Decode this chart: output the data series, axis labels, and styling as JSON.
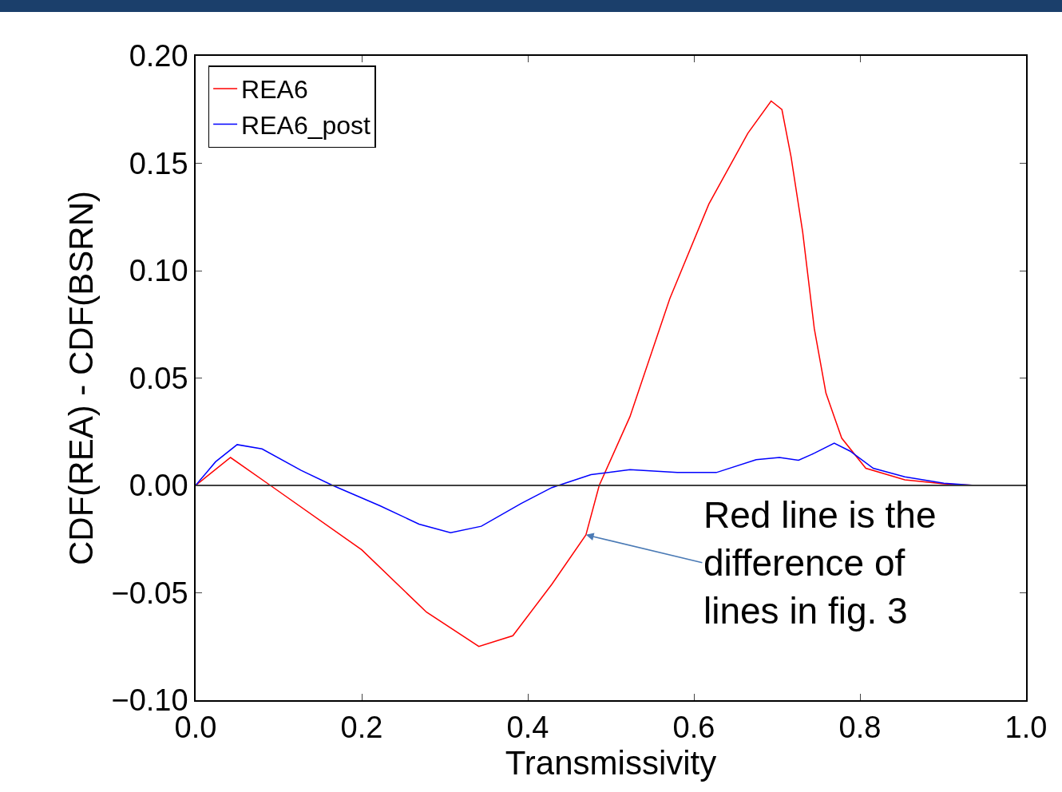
{
  "chart_data": {
    "type": "line",
    "xlabel": "Transmissivity",
    "ylabel": "CDF(REA) - CDF(BSRN)",
    "xlim": [
      0,
      1.0
    ],
    "xticks": [
      {
        "value": 0,
        "label": "0.0"
      },
      {
        "value": 0.2,
        "label": "0.2"
      },
      {
        "value": 0.4,
        "label": "0.4"
      },
      {
        "value": 0.6,
        "label": "0.6"
      },
      {
        "value": 0.8,
        "label": "0.8"
      },
      {
        "value": 1.0,
        "label": "1.0"
      }
    ],
    "ylim": [
      -0.1,
      0.2
    ],
    "yticks": [
      {
        "value": -0.1,
        "label": "−0.10"
      },
      {
        "value": -0.05,
        "label": "−0.05"
      },
      {
        "value": 0,
        "label": "0.00"
      },
      {
        "value": 0.05,
        "label": "0.05"
      },
      {
        "value": 0.1,
        "label": "0.10"
      },
      {
        "value": 0.15,
        "label": "0.15"
      },
      {
        "value": 0.2,
        "label": "0.20"
      }
    ],
    "grid": false,
    "legend": "top left",
    "line_style": "solid",
    "marker": "none",
    "series": [
      {
        "name": "REA6",
        "color": "#ff0000",
        "x": [
          0,
          0.042,
          0.09,
          0.2,
          0.278,
          0.341,
          0.382,
          0.429,
          0.47,
          0.486,
          0.523,
          0.571,
          0.618,
          0.665,
          0.693,
          0.706,
          0.717,
          0.731,
          0.745,
          0.759,
          0.778,
          0.807,
          0.854,
          0.901,
          0.939,
          0.995
        ],
        "values": [
          0,
          0.013,
          0,
          -0.03,
          -0.059,
          -0.075,
          -0.07,
          -0.046,
          -0.023,
          0,
          0.032,
          0.087,
          0.131,
          0.164,
          0.179,
          0.175,
          0.153,
          0.118,
          0.073,
          0.043,
          0.022,
          0.008,
          0.0026,
          0.0007,
          0,
          0
        ]
      },
      {
        "name": "REA6_post",
        "color": "#0000ff",
        "x": [
          0,
          0.024,
          0.05,
          0.08,
          0.127,
          0.165,
          0.222,
          0.269,
          0.307,
          0.344,
          0.392,
          0.429,
          0.476,
          0.523,
          0.58,
          0.627,
          0.675,
          0.703,
          0.726,
          0.745,
          0.769,
          0.788,
          0.816,
          0.854,
          0.901,
          0.939,
          0.995
        ],
        "values": [
          0,
          0.011,
          0.019,
          0.017,
          0.007,
          0,
          -0.0095,
          -0.018,
          -0.022,
          -0.019,
          -0.0084,
          -0.001,
          0.005,
          0.0073,
          0.006,
          0.006,
          0.012,
          0.013,
          0.0117,
          0.015,
          0.0197,
          0.016,
          0.008,
          0.004,
          0.001,
          0,
          0
        ]
      }
    ],
    "ref_lines": [
      {
        "axis": "y",
        "value": 0,
        "color": "#404040"
      }
    ],
    "annotations": [
      {
        "text": "Red line is the\ndifference of\nlines in fig. 3",
        "x": 0.47,
        "y": -0.023
      }
    ]
  }
}
